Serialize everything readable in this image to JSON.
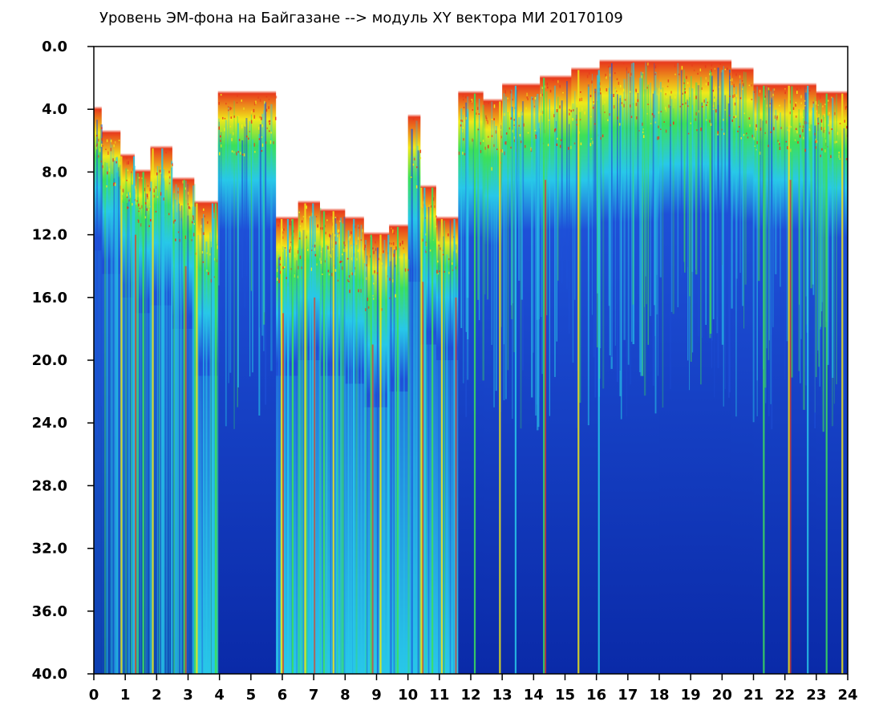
{
  "chart_data": {
    "type": "heatmap",
    "title": "Уровень ЭМ-фона на Байгазане   -->  модуль XY вектора МИ   20170109",
    "xlabel": "",
    "ylabel": "",
    "xlim": [
      0,
      24
    ],
    "ylim": [
      0,
      40
    ],
    "y_inverted": true,
    "grid": false,
    "x_ticks": [
      "0",
      "1",
      "2",
      "3",
      "4",
      "5",
      "6",
      "7",
      "8",
      "9",
      "10",
      "11",
      "12",
      "13",
      "14",
      "15",
      "16",
      "17",
      "18",
      "19",
      "20",
      "21",
      "22",
      "23",
      "24"
    ],
    "y_ticks": [
      "0.0",
      "4.0",
      "8.0",
      "12.0",
      "16.0",
      "20.0",
      "24.0",
      "28.0",
      "32.0",
      "36.0",
      "40.0"
    ],
    "colorscale": [
      "#ffffff",
      "#e83a1c",
      "#f0e81a",
      "#3ce05a",
      "#28c8e8",
      "#1e50d8",
      "#0a2aa8"
    ],
    "segments": [
      {
        "x0": 0.0,
        "x1": 0.25,
        "front": 4.0,
        "upper": 9.0,
        "deep": 0.3
      },
      {
        "x0": 0.25,
        "x1": 0.85,
        "front": 5.5,
        "upper": 10.5,
        "deep": 0.35
      },
      {
        "x0": 0.85,
        "x1": 1.3,
        "front": 7.0,
        "upper": 12.0,
        "deep": 0.4
      },
      {
        "x0": 1.3,
        "x1": 1.8,
        "front": 8.0,
        "upper": 13.0,
        "deep": 0.45
      },
      {
        "x0": 1.8,
        "x1": 2.5,
        "front": 6.5,
        "upper": 12.5,
        "deep": 0.4
      },
      {
        "x0": 2.5,
        "x1": 3.2,
        "front": 8.5,
        "upper": 14.0,
        "deep": 0.5
      },
      {
        "x0": 3.2,
        "x1": 3.95,
        "front": 10.0,
        "upper": 17.0,
        "deep": 0.55
      },
      {
        "x0": 3.95,
        "x1": 5.8,
        "front": 3.0,
        "upper": 8.5,
        "deep": 0.05
      },
      {
        "x0": 5.8,
        "x1": 6.5,
        "front": 11.0,
        "upper": 17.0,
        "deep": 0.55
      },
      {
        "x0": 6.5,
        "x1": 7.2,
        "front": 10.0,
        "upper": 16.0,
        "deep": 0.6
      },
      {
        "x0": 7.2,
        "x1": 8.0,
        "front": 10.5,
        "upper": 17.0,
        "deep": 0.65
      },
      {
        "x0": 8.0,
        "x1": 8.6,
        "front": 11.0,
        "upper": 17.5,
        "deep": 0.7
      },
      {
        "x0": 8.6,
        "x1": 9.4,
        "front": 12.0,
        "upper": 19.0,
        "deep": 0.75
      },
      {
        "x0": 9.4,
        "x1": 10.0,
        "front": 11.5,
        "upper": 18.0,
        "deep": 0.7
      },
      {
        "x0": 10.0,
        "x1": 10.4,
        "front": 4.5,
        "upper": 11.0,
        "deep": 0.55
      },
      {
        "x0": 10.4,
        "x1": 10.9,
        "front": 9.0,
        "upper": 15.0,
        "deep": 0.6
      },
      {
        "x0": 10.9,
        "x1": 11.6,
        "front": 11.0,
        "upper": 16.0,
        "deep": 0.55
      },
      {
        "x0": 11.6,
        "x1": 12.4,
        "front": 3.0,
        "upper": 9.0,
        "deep": 0.1
      },
      {
        "x0": 12.4,
        "x1": 13.0,
        "front": 3.5,
        "upper": 9.5,
        "deep": 0.15
      },
      {
        "x0": 13.0,
        "x1": 14.2,
        "front": 2.5,
        "upper": 8.5,
        "deep": 0.08
      },
      {
        "x0": 14.2,
        "x1": 15.2,
        "front": 2.0,
        "upper": 8.5,
        "deep": 0.06
      },
      {
        "x0": 15.2,
        "x1": 16.1,
        "front": 1.5,
        "upper": 8.5,
        "deep": 0.05
      },
      {
        "x0": 16.1,
        "x1": 18.0,
        "front": 1.0,
        "upper": 8.0,
        "deep": 0.02
      },
      {
        "x0": 18.0,
        "x1": 20.3,
        "front": 1.0,
        "upper": 7.5,
        "deep": 0.01
      },
      {
        "x0": 20.3,
        "x1": 21.0,
        "front": 1.5,
        "upper": 8.0,
        "deep": 0.02
      },
      {
        "x0": 21.0,
        "x1": 22.0,
        "front": 2.5,
        "upper": 8.5,
        "deep": 0.08
      },
      {
        "x0": 22.0,
        "x1": 23.0,
        "front": 2.5,
        "upper": 8.5,
        "deep": 0.1
      },
      {
        "x0": 23.0,
        "x1": 24.0,
        "front": 3.0,
        "upper": 9.0,
        "deep": 0.12
      }
    ],
    "bright_streaks": [
      0.85,
      1.25,
      1.55,
      1.85,
      2.15,
      2.85,
      3.25,
      3.75,
      3.85,
      5.95,
      6.15,
      6.3,
      6.7,
      6.95,
      7.3,
      7.6,
      8.25,
      8.8,
      9.1,
      9.35,
      9.65,
      10.4,
      10.5,
      10.75,
      11.05,
      11.45,
      12.1,
      12.9,
      13.4,
      14.3,
      15.4,
      16.05,
      21.3,
      22.1,
      22.7,
      23.3,
      23.8
    ]
  }
}
